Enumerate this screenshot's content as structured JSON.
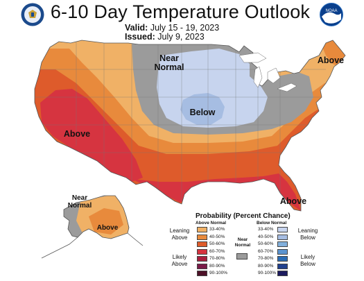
{
  "title": "6-10 Day Temperature Outlook",
  "valid_label": "Valid:",
  "valid_value": "July 15 - 19, 2023",
  "issued_label": "Issued:",
  "issued_value": "July 9, 2023",
  "region_labels": {
    "near_normal_north_line1": "Near",
    "near_normal_north_line2": "Normal",
    "below_midwest": "Below",
    "above_west": "Above",
    "above_northeast": "Above",
    "above_florida": "Above",
    "near_normal_alaska_line1": "Near",
    "near_normal_alaska_line2": "Normal",
    "above_alaska": "Above"
  },
  "legend": {
    "title": "Probability (Percent Chance)",
    "above_header": "Above Normal",
    "below_header": "Below Normal",
    "near_label_line1": "Near",
    "near_label_line2": "Normal",
    "leaning_above_line1": "Leaning",
    "leaning_above_line2": "Above",
    "likely_above_line1": "Likely",
    "likely_above_line2": "Above",
    "leaning_below_line1": "Leaning",
    "leaning_below_line2": "Below",
    "likely_below_line1": "Likely",
    "likely_below_line2": "Below",
    "above_ranges": [
      "33-40%",
      "40-50%",
      "50-60%",
      "60-70%",
      "70-80%",
      "80-90%",
      "90-100%"
    ],
    "below_ranges": [
      "33-40%",
      "40-50%",
      "50-60%",
      "60-70%",
      "70-80%",
      "80-90%",
      "90-100%"
    ],
    "above_colors": [
      "#f0b166",
      "#e88a3c",
      "#de5b2b",
      "#d63440",
      "#a91f3e",
      "#7a1a48",
      "#4d1127"
    ],
    "below_colors": [
      "#c7d4ee",
      "#a6bde2",
      "#82b0dc",
      "#5c94cf",
      "#2b6cb4",
      "#21418e",
      "#1c1a5e"
    ],
    "near_color": "#9b9b9b"
  },
  "colors": {
    "near_normal": "#9b9b9b",
    "above_33_40": "#f0b166",
    "above_40_50": "#e88a3c",
    "above_50_60": "#de5b2b",
    "above_60_70": "#d63440",
    "below_33_40": "#c7d4ee",
    "below_40_50": "#a6bde2",
    "background": "#ffffff"
  },
  "icons": {
    "left_logo": "department-of-commerce-seal-icon",
    "right_logo": "noaa-logo-icon"
  }
}
